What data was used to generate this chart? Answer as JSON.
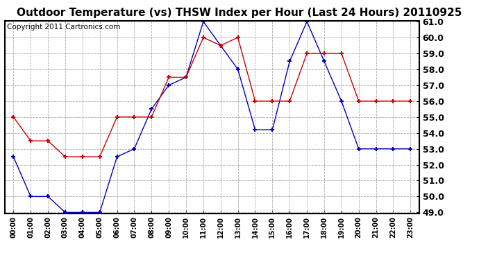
{
  "title": "Outdoor Temperature (vs) THSW Index per Hour (Last 24 Hours) 20110925",
  "copyright": "Copyright 2011 Cartronics.com",
  "hours": [
    "00:00",
    "01:00",
    "02:00",
    "03:00",
    "04:00",
    "05:00",
    "06:00",
    "07:00",
    "08:00",
    "09:00",
    "10:00",
    "11:00",
    "12:00",
    "13:00",
    "14:00",
    "15:00",
    "16:00",
    "17:00",
    "18:00",
    "19:00",
    "20:00",
    "21:00",
    "22:00",
    "23:00"
  ],
  "blue_data": [
    52.5,
    50.0,
    50.0,
    49.0,
    49.0,
    49.0,
    52.5,
    53.0,
    55.5,
    57.0,
    57.5,
    61.0,
    59.5,
    58.0,
    54.2,
    54.2,
    58.5,
    61.0,
    58.5,
    56.0,
    53.0,
    53.0,
    53.0,
    53.0
  ],
  "red_data": [
    55.0,
    53.5,
    53.5,
    52.5,
    52.5,
    52.5,
    55.0,
    55.0,
    55.0,
    57.5,
    57.5,
    60.0,
    59.5,
    60.0,
    56.0,
    56.0,
    56.0,
    59.0,
    59.0,
    59.0,
    56.0,
    56.0,
    56.0,
    56.0
  ],
  "ylim": [
    49.0,
    61.0
  ],
  "yticks": [
    49.0,
    50.0,
    51.0,
    52.0,
    53.0,
    54.0,
    55.0,
    56.0,
    57.0,
    58.0,
    59.0,
    60.0,
    61.0
  ],
  "blue_color": "#0000bb",
  "red_color": "#cc0000",
  "bg_color": "#ffffff",
  "grid_color": "#aaaaaa",
  "title_fontsize": 11,
  "copyright_fontsize": 7.5,
  "ytick_fontsize": 9,
  "xtick_fontsize": 7
}
